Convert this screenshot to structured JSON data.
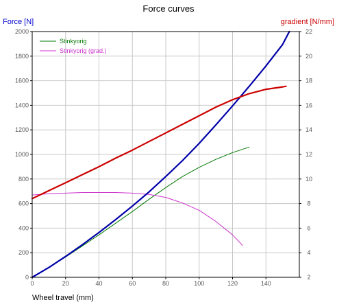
{
  "chart_data": {
    "type": "line",
    "title": "Force curves",
    "xlabel": "Wheel travel (mm)",
    "ylabel": "Force [N]",
    "y2label": "gradient [N/mm]",
    "xlim": [
      0,
      160
    ],
    "ylim": [
      0,
      2000
    ],
    "y2lim": [
      2,
      22
    ],
    "grid": true,
    "legend_position": "top-left",
    "x_ticks": [
      "0",
      "20",
      "40",
      "60",
      "80",
      "100",
      "120",
      "140"
    ],
    "y_ticks": [
      "0",
      "200",
      "400",
      "600",
      "800",
      "1000",
      "1200",
      "1400",
      "1600",
      "1800",
      "2000"
    ],
    "y2_ticks": [
      "2",
      "4",
      "6",
      "8",
      "10",
      "12",
      "14",
      "16",
      "18",
      "20",
      "22"
    ],
    "colors": {
      "ylabel": "#0000cc",
      "y2label": "#cc0000",
      "grid": "#c8c8c8",
      "axis": "#000000"
    },
    "series": [
      {
        "name": "Stinkyorig",
        "axis": "left",
        "color": "#007700",
        "width": 1,
        "legend": true,
        "x": [
          0,
          10,
          20,
          30,
          40,
          50,
          60,
          70,
          80,
          90,
          100,
          110,
          120,
          130
        ],
        "values": [
          0,
          80,
          165,
          255,
          345,
          440,
          535,
          635,
          730,
          820,
          895,
          960,
          1015,
          1060
        ]
      },
      {
        "name": "Stinkyorig (grad.)",
        "axis": "right",
        "color": "#cc33cc",
        "width": 1,
        "legend": true,
        "x": [
          0,
          10,
          20,
          30,
          40,
          50,
          60,
          70,
          80,
          90,
          100,
          110,
          120,
          126
        ],
        "values": [
          8.7,
          8.8,
          8.85,
          8.9,
          8.9,
          8.9,
          8.85,
          8.75,
          8.5,
          8.05,
          7.45,
          6.55,
          5.45,
          4.6
        ]
      },
      {
        "axis": "left",
        "color": "#0000aa",
        "width": 2.2,
        "legend": false,
        "x": [
          0,
          10,
          20,
          30,
          40,
          50,
          60,
          70,
          80,
          90,
          100,
          110,
          120,
          130,
          140,
          150,
          154
        ],
        "values": [
          0,
          80,
          170,
          265,
          365,
          470,
          580,
          695,
          820,
          950,
          1090,
          1240,
          1395,
          1555,
          1720,
          1895,
          2000
        ]
      },
      {
        "axis": "right",
        "color": "#cc0000",
        "width": 2.2,
        "legend": false,
        "x": [
          0,
          10,
          20,
          30,
          40,
          50,
          60,
          70,
          80,
          90,
          100,
          110,
          120,
          130,
          140,
          150,
          152
        ],
        "values": [
          8.4,
          9.05,
          9.7,
          10.35,
          11.0,
          11.7,
          12.35,
          13.05,
          13.75,
          14.45,
          15.15,
          15.85,
          16.45,
          16.95,
          17.3,
          17.5,
          17.55
        ]
      }
    ]
  }
}
